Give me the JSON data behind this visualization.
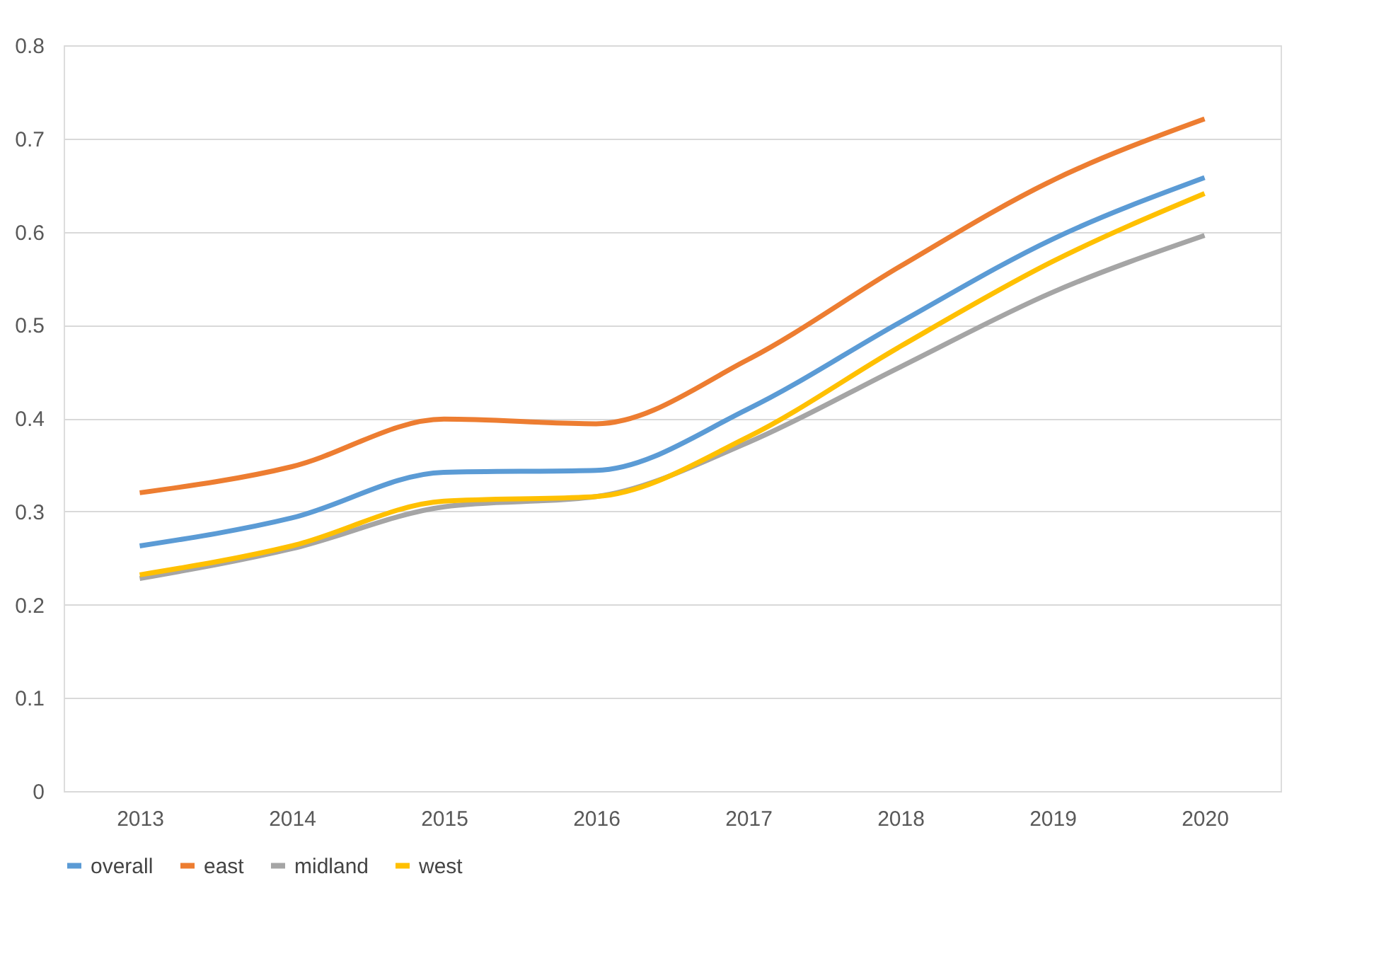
{
  "chart_data": {
    "type": "line",
    "categories": [
      "2013",
      "2014",
      "2015",
      "2016",
      "2017",
      "2018",
      "2019",
      "2020"
    ],
    "series": [
      {
        "name": "overall",
        "color": "#5b9bd5",
        "values": [
          0.263,
          0.293,
          0.342,
          0.344,
          0.41,
          0.503,
          0.592,
          0.658
        ]
      },
      {
        "name": "east",
        "color": "#ed7d31",
        "values": [
          0.32,
          0.348,
          0.399,
          0.394,
          0.463,
          0.563,
          0.655,
          0.721
        ]
      },
      {
        "name": "midland",
        "color": "#a5a5a5",
        "values": [
          0.228,
          0.26,
          0.305,
          0.316,
          0.374,
          0.455,
          0.535,
          0.596
        ]
      },
      {
        "name": "west",
        "color": "#ffc000",
        "values": [
          0.232,
          0.263,
          0.311,
          0.316,
          0.38,
          0.477,
          0.568,
          0.641
        ]
      }
    ],
    "ylim": [
      0,
      0.8
    ],
    "yticks": [
      0,
      0.1,
      0.2,
      0.3,
      0.4,
      0.5,
      0.6,
      0.7,
      0.8
    ],
    "grid": "y",
    "legend": "bottom",
    "marker": "none",
    "line_style": "solid"
  }
}
